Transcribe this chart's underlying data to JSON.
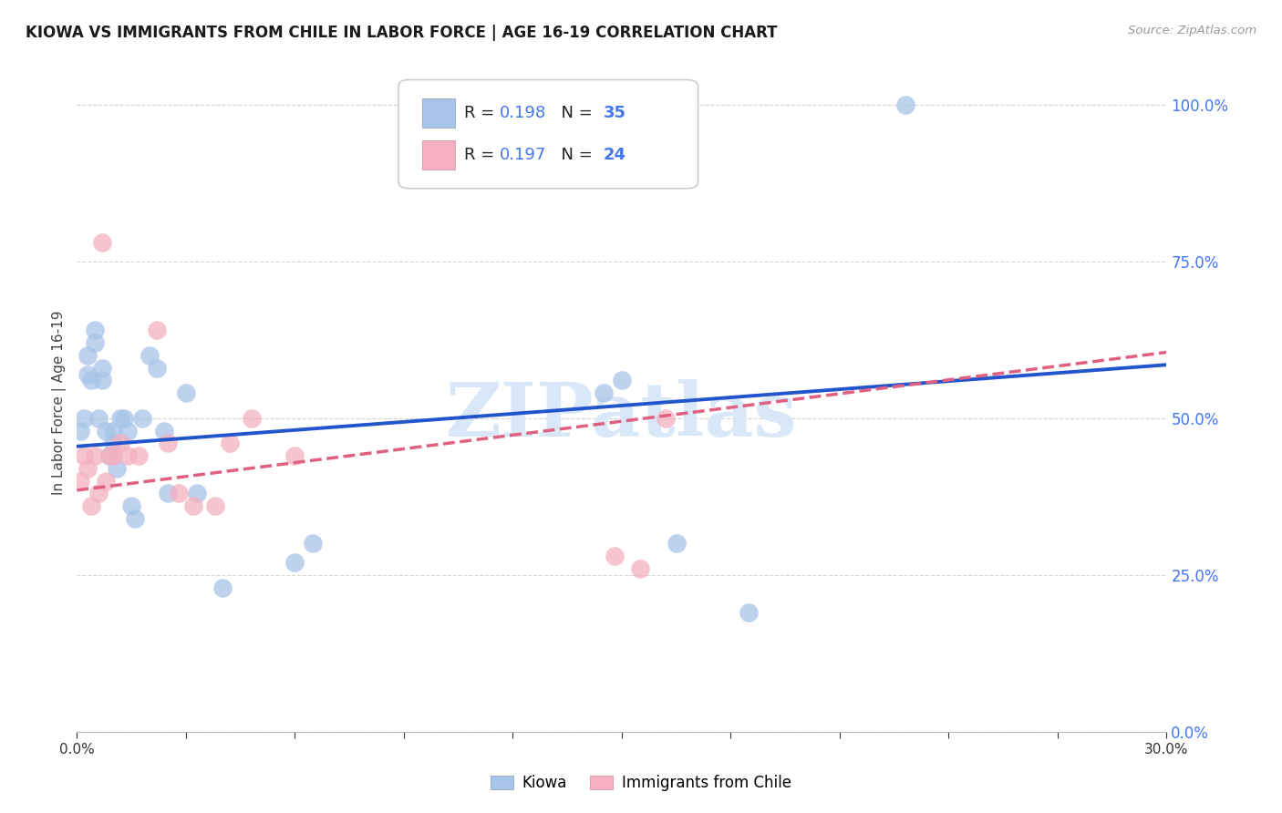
{
  "title": "KIOWA VS IMMIGRANTS FROM CHILE IN LABOR FORCE | AGE 16-19 CORRELATION CHART",
  "source": "Source: ZipAtlas.com",
  "ylabel": "In Labor Force | Age 16-19",
  "xlim": [
    0.0,
    0.3
  ],
  "ylim": [
    0.0,
    1.05
  ],
  "blue_R": "0.198",
  "blue_N": "35",
  "pink_R": "0.197",
  "pink_N": "24",
  "blue_label": "Kiowa",
  "pink_label": "Immigrants from Chile",
  "blue_dot_color": "#a8c4e8",
  "pink_dot_color": "#f4b0c0",
  "blue_line_color": "#2255cc",
  "pink_line_color": "#e06080",
  "legend_val_color": "#4477ee",
  "background": "#ffffff",
  "grid_color": "#d0d0d0",
  "right_tick_color": "#4477ee",
  "watermark_text": "ZIPatlas",
  "watermark_color": "#d8e8f8",
  "blue_x": [
    0.001,
    0.002,
    0.003,
    0.003,
    0.004,
    0.005,
    0.005,
    0.006,
    0.007,
    0.007,
    0.008,
    0.009,
    0.01,
    0.01,
    0.011,
    0.012,
    0.013,
    0.014,
    0.015,
    0.016,
    0.018,
    0.02,
    0.022,
    0.024,
    0.025,
    0.03,
    0.033,
    0.04,
    0.06,
    0.065,
    0.145,
    0.15,
    0.165,
    0.185,
    0.228
  ],
  "blue_y": [
    0.48,
    0.5,
    0.57,
    0.6,
    0.56,
    0.62,
    0.64,
    0.5,
    0.56,
    0.58,
    0.48,
    0.44,
    0.46,
    0.48,
    0.42,
    0.5,
    0.5,
    0.48,
    0.36,
    0.34,
    0.5,
    0.6,
    0.58,
    0.48,
    0.38,
    0.54,
    0.38,
    0.23,
    0.27,
    0.3,
    0.54,
    0.56,
    0.3,
    0.19,
    1.0
  ],
  "pink_x": [
    0.001,
    0.002,
    0.003,
    0.004,
    0.005,
    0.006,
    0.007,
    0.008,
    0.009,
    0.01,
    0.012,
    0.014,
    0.017,
    0.022,
    0.025,
    0.028,
    0.032,
    0.038,
    0.042,
    0.048,
    0.06,
    0.148,
    0.155,
    0.162
  ],
  "pink_y": [
    0.4,
    0.44,
    0.42,
    0.36,
    0.44,
    0.38,
    0.78,
    0.4,
    0.44,
    0.44,
    0.46,
    0.44,
    0.44,
    0.64,
    0.46,
    0.38,
    0.36,
    0.36,
    0.46,
    0.5,
    0.44,
    0.28,
    0.26,
    0.5
  ]
}
